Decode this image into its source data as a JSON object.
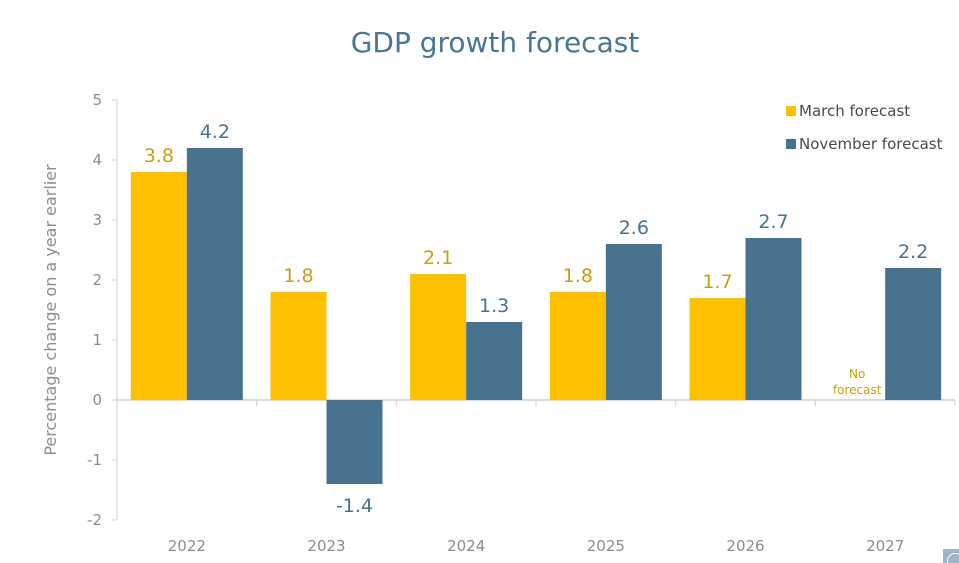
{
  "chart_data": {
    "type": "bar",
    "title": "GDP growth forecast",
    "xlabel": "",
    "ylabel": "Percentage change on a year earlier",
    "ylim": [
      -2,
      5
    ],
    "yticks": [
      5,
      4,
      3,
      2,
      1,
      0,
      -1,
      -2
    ],
    "grid": false,
    "legend_position": "top-right",
    "categories": [
      "2022",
      "2023",
      "2024",
      "2025",
      "2026",
      "2027"
    ],
    "series": [
      {
        "name": "March forecast",
        "color": "#ffc000",
        "label_color": "#c9a00c",
        "values": [
          3.8,
          1.8,
          2.1,
          1.8,
          1.7,
          null
        ],
        "labels": [
          "3.8",
          "1.8",
          "2.1",
          "1.8",
          "1.7",
          null
        ]
      },
      {
        "name": "November forecast",
        "color": "#48738f",
        "label_color": "#48738f",
        "values": [
          4.2,
          -1.4,
          1.3,
          2.6,
          2.7,
          2.2
        ],
        "labels": [
          "4.2",
          "-1.4",
          "1.3",
          "2.6",
          "2.7",
          "2.2"
        ]
      }
    ],
    "annotations": [
      {
        "category": "2027",
        "series": "March forecast",
        "lines": [
          "No",
          "forecast"
        ]
      }
    ]
  }
}
